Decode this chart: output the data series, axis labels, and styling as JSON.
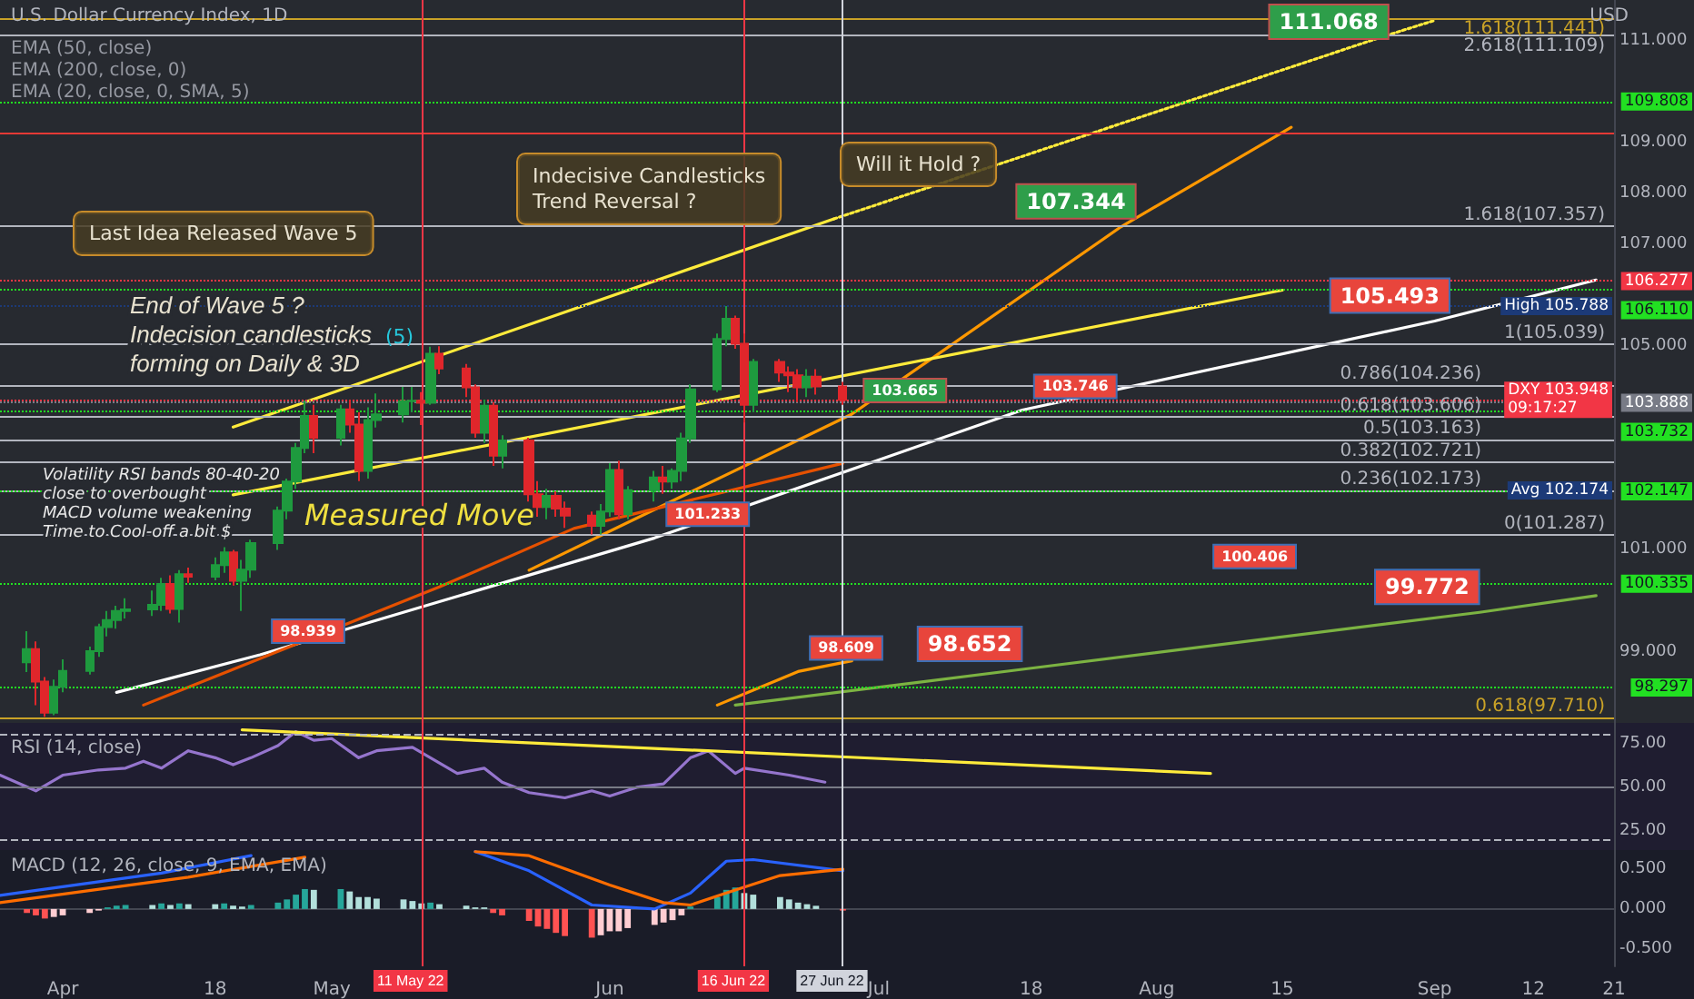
{
  "chart_data": [
    {
      "type": "candlestick",
      "title": "U.S. Dollar Currency Index, 1D",
      "ylabel": "USD",
      "tick_labels": "y",
      "x": [
        "--03-28",
        "--03-29",
        "--03-30",
        "--03-31",
        "--04-01",
        "--04-04",
        "--04-05",
        "--04-06",
        "--04-07",
        "--04-08",
        "--04-11",
        "--04-12",
        "--04-13",
        "--04-14",
        "--04-15",
        "--04-18",
        "--04-19",
        "--04-20",
        "--04-21",
        "--04-22",
        "--04-25",
        "--04-26",
        "--04-27",
        "--04-28",
        "--04-29",
        "--05-02",
        "--05-03",
        "--05-04",
        "--05-05",
        "--05-06",
        "--05-09",
        "--05-10",
        "--05-11",
        "--05-12",
        "--05-13",
        "--05-16",
        "--05-17",
        "--05-18",
        "--05-19",
        "--05-20",
        "--05-23",
        "--05-24",
        "--05-25",
        "--05-26",
        "--05-27",
        "--05-30",
        "--05-31",
        "--06-01",
        "--06-02",
        "--06-03",
        "--06-06",
        "--06-07",
        "--06-08",
        "--06-09",
        "--06-10",
        "--06-13",
        "--06-14",
        "--06-15",
        "--06-16",
        "--06-17",
        "--06-20",
        "--06-21",
        "--06-22",
        "--06-23",
        "--06-24",
        "--06-27"
      ],
      "ohlc": [
        [
          98.79,
          99.4,
          98.6,
          99.05
        ],
        [
          99.05,
          99.2,
          97.95,
          98.41
        ],
        [
          98.41,
          98.5,
          97.72,
          97.8
        ],
        [
          97.8,
          98.45,
          97.75,
          98.31
        ],
        [
          98.31,
          98.85,
          98.2,
          98.62
        ],
        [
          98.62,
          99.1,
          98.55,
          99.01
        ],
        [
          99.01,
          99.55,
          98.9,
          99.48
        ],
        [
          99.48,
          99.8,
          99.3,
          99.62
        ],
        [
          99.62,
          99.9,
          99.45,
          99.8
        ],
        [
          99.8,
          100.05,
          99.65,
          99.83
        ],
        [
          99.83,
          100.2,
          99.7,
          99.92
        ],
        [
          99.92,
          100.45,
          99.8,
          100.33
        ],
        [
          100.33,
          100.5,
          99.75,
          99.84
        ],
        [
          99.84,
          100.6,
          99.57,
          100.52
        ],
        [
          100.52,
          100.65,
          100.35,
          100.47
        ],
        [
          100.47,
          100.85,
          100.4,
          100.7
        ],
        [
          100.7,
          101.05,
          100.55,
          100.95
        ],
        [
          100.95,
          101.0,
          100.3,
          100.39
        ],
        [
          100.39,
          100.8,
          99.8,
          100.61
        ],
        [
          100.61,
          101.2,
          100.45,
          101.13
        ],
        [
          101.13,
          101.85,
          101.0,
          101.77
        ],
        [
          101.77,
          102.4,
          101.6,
          102.34
        ],
        [
          102.34,
          103.1,
          102.2,
          103.0
        ],
        [
          103.0,
          103.93,
          102.9,
          103.63
        ],
        [
          103.63,
          103.85,
          102.9,
          103.2
        ],
        [
          103.2,
          103.85,
          103.05,
          103.76
        ],
        [
          103.76,
          103.95,
          103.3,
          103.46
        ],
        [
          103.46,
          103.7,
          102.35,
          102.55
        ],
        [
          102.55,
          103.8,
          102.4,
          103.55
        ],
        [
          103.55,
          104.07,
          103.4,
          103.66
        ],
        [
          103.66,
          104.2,
          103.5,
          103.92
        ],
        [
          103.92,
          104.2,
          103.7,
          103.93
        ],
        [
          103.93,
          104.1,
          103.45,
          103.89
        ],
        [
          103.89,
          104.99,
          103.85,
          104.85
        ],
        [
          104.85,
          105.0,
          104.45,
          104.56
        ],
        [
          104.56,
          104.65,
          104.0,
          104.19
        ],
        [
          104.19,
          104.25,
          103.2,
          103.3
        ],
        [
          103.3,
          103.95,
          103.1,
          103.83
        ],
        [
          103.83,
          103.9,
          102.65,
          102.85
        ],
        [
          102.85,
          103.25,
          102.6,
          103.15
        ],
        [
          103.15,
          103.2,
          101.95,
          102.09
        ],
        [
          102.09,
          102.35,
          101.65,
          101.84
        ],
        [
          101.84,
          102.2,
          101.6,
          102.06
        ],
        [
          102.06,
          102.15,
          101.65,
          101.81
        ],
        [
          101.81,
          101.95,
          101.43,
          101.67
        ],
        [
          101.67,
          101.75,
          101.3,
          101.47
        ],
        [
          101.47,
          101.9,
          101.3,
          101.75
        ],
        [
          101.75,
          102.7,
          101.65,
          102.57
        ],
        [
          102.57,
          102.75,
          101.6,
          101.7
        ],
        [
          101.7,
          102.25,
          101.6,
          102.17
        ],
        [
          102.17,
          102.55,
          101.95,
          102.42
        ],
        [
          102.42,
          102.65,
          102.1,
          102.34
        ],
        [
          102.34,
          102.6,
          102.2,
          102.55
        ],
        [
          102.55,
          103.3,
          102.35,
          103.19
        ],
        [
          103.19,
          104.25,
          103.1,
          104.15
        ],
        [
          104.15,
          105.25,
          104.1,
          105.14
        ],
        [
          105.14,
          105.79,
          105.0,
          105.54
        ],
        [
          105.54,
          105.6,
          104.95,
          105.05
        ],
        [
          105.05,
          105.25,
          103.5,
          103.85
        ],
        [
          103.85,
          104.75,
          103.7,
          104.69
        ],
        [
          104.69,
          104.75,
          104.3,
          104.48
        ],
        [
          104.48,
          104.6,
          104.1,
          104.43
        ],
        [
          104.43,
          104.55,
          103.9,
          104.19
        ],
        [
          104.19,
          104.55,
          104.0,
          104.4
        ],
        [
          104.4,
          104.55,
          104.05,
          104.21
        ],
        [
          104.21,
          104.3,
          103.85,
          103.948
        ]
      ],
      "series": [
        {
          "type": "line",
          "color": "#ffffff",
          "x": [
            "--04-07",
            "--04-23",
            "--06-06",
            "--07-17",
            "--09-01",
            "--09-19"
          ],
          "values": [
            98.2,
            98.939,
            101.233,
            103.746,
            105.493,
            106.3
          ]
        },
        {
          "type": "line",
          "color": "#ff9800",
          "x": [
            "--05-23",
            "--06-28",
            "--07-28",
            "--08-16"
          ],
          "values": [
            100.6,
            103.665,
            107.344,
            109.3
          ]
        },
        {
          "type": "line",
          "color": "#ff9800",
          "x": [
            "--06-13",
            "--06-22",
            "--06-28"
          ],
          "values": [
            97.95,
            98.609,
            98.82
          ]
        },
        {
          "type": "line",
          "color": "#ffeb3b",
          "line_style": "dotted",
          "x": [
            "--06-26",
            "--08-26",
            "--09-01"
          ],
          "values": [
            107.5,
            111.068,
            111.4
          ]
        },
        {
          "type": "line",
          "color": "#ffeb3b",
          "x": [
            "--04-20",
            "--06-26"
          ],
          "values": [
            103.41,
            107.5
          ]
        },
        {
          "type": "line",
          "color": "#ffeb3b",
          "x": [
            "--04-20",
            "--08-15"
          ],
          "values": [
            102.08,
            106.1
          ]
        },
        {
          "type": "line",
          "color": "#7cb342",
          "x": [
            "--06-15",
            "--07-17",
            "--09-06",
            "--09-19"
          ],
          "values": [
            97.95,
            98.652,
            99.772,
            100.1
          ]
        },
        {
          "type": "line",
          "color": "#e65100",
          "x": [
            "--04-10",
            "--05-13",
            "--05-28",
            "--06-27"
          ],
          "values": [
            97.95,
            100.27,
            101.42,
            102.7
          ]
        }
      ],
      "xlim": [
        "--03-25",
        "--09-21"
      ],
      "ylim": [
        97.6,
        111.8
      ],
      "yticks": [
        {
          "value": 99,
          "label": "99.000"
        },
        {
          "value": 101,
          "label": "101.000"
        },
        {
          "value": 105,
          "label": "105.000"
        },
        {
          "value": 107,
          "label": "107.000"
        },
        {
          "value": 108,
          "label": "108.000"
        },
        {
          "value": 109,
          "label": "109.000"
        },
        {
          "value": 111,
          "label": "111.000"
        }
      ],
      "ref_lines": [
        {
          "axis": "y",
          "value": 111.441,
          "label": "1.618(111.441)",
          "color": "#c9a227"
        },
        {
          "axis": "y",
          "value": 111.109,
          "label": "2.618(111.109)",
          "color": "#b2b5be"
        },
        {
          "axis": "y",
          "value": 107.357,
          "label": "1.618(107.357)",
          "color": "#b2b5be"
        },
        {
          "axis": "y",
          "value": 105.039,
          "label": "1(105.039)",
          "color": "#b2b5be"
        },
        {
          "axis": "y",
          "value": 104.236,
          "label": "0.786(104.236)",
          "color": "#b2b5be"
        },
        {
          "axis": "y",
          "value": 103.606,
          "label": "0.618(103.606)",
          "color": "#b2b5be"
        },
        {
          "axis": "y",
          "value": 103.163,
          "label": "0.5(103.163)",
          "color": "#b2b5be"
        },
        {
          "axis": "y",
          "value": 102.721,
          "label": "0.382(102.721)",
          "color": "#b2b5be"
        },
        {
          "axis": "y",
          "value": 102.173,
          "label": "0.236(102.173)",
          "color": "#b2b5be"
        },
        {
          "axis": "y",
          "value": 101.287,
          "label": "0(101.287)",
          "color": "#b2b5be"
        },
        {
          "axis": "y",
          "value": 97.71,
          "label": "0.618(97.710)",
          "color": "#c9a227"
        },
        {
          "axis": "y",
          "value": 109.2,
          "color": "#e53935"
        },
        {
          "axis": "y",
          "value": 109.808,
          "label": "109.808",
          "color": "#22e022",
          "line_style": "dotted"
        },
        {
          "axis": "y",
          "value": 106.11,
          "label": "106.110",
          "color": "#22e022",
          "line_style": "dotted"
        },
        {
          "axis": "y",
          "value": 103.732,
          "label": "103.732",
          "color": "#22e022",
          "line_style": "dotted"
        },
        {
          "axis": "y",
          "value": 102.147,
          "label": "102.147",
          "color": "#22e022",
          "line_style": "dotted"
        },
        {
          "axis": "y",
          "value": 100.335,
          "label": "100.335",
          "color": "#22e022",
          "line_style": "dotted"
        },
        {
          "axis": "y",
          "value": 98.297,
          "label": "98.297",
          "color": "#22e022",
          "line_style": "dotted"
        },
        {
          "axis": "y",
          "value": 106.277,
          "label": "106.277",
          "color": "#f23645",
          "line_style": "dotted"
        },
        {
          "axis": "y",
          "value": 105.788,
          "label": "High 105.788",
          "color": "#1c3a78",
          "line_style": "dotted"
        },
        {
          "axis": "y",
          "value": 103.948,
          "label": "DXY 103.948\n09:17:27",
          "color": "#f23645",
          "line_style": "dotted"
        },
        {
          "axis": "y",
          "value": 103.888,
          "label": "103.888",
          "color": "#787b86",
          "line_style": "dotted"
        },
        {
          "axis": "x",
          "value": "--05-11",
          "color": "#f23645"
        },
        {
          "axis": "x",
          "value": "--06-16",
          "color": "#f23645"
        },
        {
          "axis": "x",
          "value": "--06-27",
          "color": "#d1d4dc"
        }
      ],
      "annotations": [
        "EMA (50, close)",
        "EMA (200, close, 0)",
        "EMA (20, close, 0, SMA, 5)",
        "Last Idea Released Wave 5",
        "Indecisive Candlesticks\nTrend Reversal ?",
        "Will it Hold ?",
        "End of Wave 5 ?\nIndecision candlesticks\nforming on Daily & 3D",
        "(5)",
        "Volatility RSI bands 80-40-20\nclose to overbought\nMACD volume weakening\nTime to Cool-off a bit $",
        "Measured Move",
        "Avg 102.174",
        {
          "text": "111.068",
          "x": "--08-26",
          "y": 111.068
        },
        {
          "text": "107.344",
          "x": "--07-28",
          "y": 107.344
        },
        {
          "text": "105.493",
          "x": "--09-01",
          "y": 105.493
        },
        {
          "text": "103.746",
          "x": "--07-17",
          "y": 103.746
        },
        {
          "text": "100.406",
          "x": "--08-06",
          "y": 100.406
        },
        {
          "text": "99.772",
          "x": "--09-06",
          "y": 99.772
        },
        {
          "text": "98.652",
          "x": "--07-17",
          "y": 98.652
        },
        {
          "text": "98.939",
          "x": "--04-23",
          "y": 98.939
        },
        {
          "text": "101.233",
          "x": "--06-06",
          "y": 101.233
        },
        {
          "text": "98.609",
          "x": "--06-22",
          "y": 98.609
        },
        {
          "text": "103.665",
          "x": "--06-28",
          "y": 103.665
        }
      ]
    },
    {
      "type": "line",
      "title": "RSI (14, close)",
      "tick_labels": "y",
      "series": [
        {
          "color": "#9575cd",
          "x": [
            "--03-25",
            "--03-29",
            "--04-01",
            "--04-05",
            "--04-08",
            "--04-10",
            "--04-12",
            "--04-15",
            "--04-18",
            "--04-20",
            "--04-22",
            "--04-25",
            "--04-27",
            "--04-29",
            "--05-01",
            "--05-04",
            "--05-06",
            "--05-10",
            "--05-12",
            "--05-15",
            "--05-18",
            "--05-20",
            "--05-23",
            "--05-27",
            "--05-30",
            "--06-01",
            "--06-04",
            "--06-07",
            "--06-10",
            "--06-12",
            "--06-15",
            "--06-16",
            "--06-21",
            "--06-25"
          ],
          "values": [
            57,
            48,
            57,
            60,
            61,
            65,
            61,
            71,
            67,
            63,
            67,
            74,
            82,
            77,
            78,
            67,
            71,
            73,
            67,
            58,
            61,
            53,
            47,
            44,
            48,
            45,
            50,
            52,
            67,
            71,
            58,
            61,
            57,
            53
          ]
        },
        {
          "color": "#ffeb3b",
          "x": [
            "--04-21",
            "--08-07"
          ],
          "values": [
            83,
            58
          ]
        }
      ],
      "xlim": [
        "--03-25",
        "--09-21"
      ],
      "ylim": [
        14,
        87
      ],
      "yticks": [
        {
          "value": 25,
          "label": "25.00"
        },
        {
          "value": 50,
          "label": "50.00"
        },
        {
          "value": 75,
          "label": "75.00"
        }
      ],
      "ref_lines": [
        {
          "axis": "y",
          "value": 80,
          "color": "#b2b5be",
          "line_style": "dashed"
        },
        {
          "axis": "y",
          "value": 50,
          "color": "#787b86"
        },
        {
          "axis": "y",
          "value": 20,
          "color": "#b2b5be",
          "line_style": "dashed"
        },
        {
          "axis": "x",
          "value": "--05-11",
          "color": "#f23645"
        },
        {
          "axis": "x",
          "value": "--06-16",
          "color": "#f23645"
        },
        {
          "axis": "x",
          "value": "--06-27",
          "color": "#d1d4dc"
        }
      ]
    },
    {
      "type": "bar",
      "title": "MACD (12, 26, close, 9, EMA, EMA)",
      "x": [
        "--03-28",
        "--03-29",
        "--03-30",
        "--03-31",
        "--04-01",
        "--04-04",
        "--04-05",
        "--04-06",
        "--04-07",
        "--04-08",
        "--04-11",
        "--04-12",
        "--04-13",
        "--04-14",
        "--04-15",
        "--04-18",
        "--04-19",
        "--04-20",
        "--04-21",
        "--04-22",
        "--04-25",
        "--04-26",
        "--04-27",
        "--04-28",
        "--04-29",
        "--05-02",
        "--05-03",
        "--05-04",
        "--05-05",
        "--05-06",
        "--05-09",
        "--05-10",
        "--05-11",
        "--05-12",
        "--05-13",
        "--05-16",
        "--05-17",
        "--05-18",
        "--05-19",
        "--05-20",
        "--05-23",
        "--05-24",
        "--05-25",
        "--05-26",
        "--05-27",
        "--05-30",
        "--05-31",
        "--06-01",
        "--06-02",
        "--06-03",
        "--06-06",
        "--06-07",
        "--06-08",
        "--06-09",
        "--06-10",
        "--06-13",
        "--06-14",
        "--06-15",
        "--06-16",
        "--06-17",
        "--06-20",
        "--06-21",
        "--06-22",
        "--06-23",
        "--06-24",
        "--06-27"
      ],
      "series": [
        {
          "values": [
            -0.05,
            -0.08,
            -0.12,
            -0.1,
            -0.08,
            -0.05,
            -0.02,
            0.02,
            0.04,
            0.05,
            0.05,
            0.07,
            0.05,
            0.07,
            0.06,
            0.06,
            0.07,
            0.04,
            0.03,
            0.05,
            0.08,
            0.12,
            0.18,
            0.25,
            0.24,
            0.25,
            0.22,
            0.15,
            0.15,
            0.13,
            0.12,
            0.1,
            0.07,
            0.08,
            0.06,
            0.04,
            0.02,
            0.02,
            -0.05,
            -0.08,
            -0.15,
            -0.22,
            -0.25,
            -0.3,
            -0.34,
            -0.36,
            -0.33,
            -0.28,
            -0.28,
            -0.24,
            -0.2,
            -0.17,
            -0.14,
            -0.08,
            0.03,
            0.15,
            0.24,
            0.27,
            0.2,
            0.18,
            0.15,
            0.12,
            0.08,
            0.06,
            0.04,
            -0.02
          ],
          "colors": [
            "#ff5252",
            "#ff5252",
            "#ff5252",
            "#ffcdd2",
            "#ffcdd2",
            "#ffcdd2",
            "#ffcdd2",
            "#26a69a",
            "#26a69a",
            "#26a69a",
            "#b2dfdb",
            "#26a69a",
            "#b2dfdb",
            "#26a69a",
            "#b2dfdb",
            "#b2dfdb",
            "#26a69a",
            "#b2dfdb",
            "#b2dfdb",
            "#26a69a",
            "#26a69a",
            "#26a69a",
            "#26a69a",
            "#26a69a",
            "#b2dfdb",
            "#26a69a",
            "#b2dfdb",
            "#b2dfdb",
            "#b2dfdb",
            "#b2dfdb",
            "#b2dfdb",
            "#b2dfdb",
            "#b2dfdb",
            "#26a69a",
            "#b2dfdb",
            "#b2dfdb",
            "#b2dfdb",
            "#b2dfdb",
            "#ff5252",
            "#ff5252",
            "#ff5252",
            "#ff5252",
            "#ff5252",
            "#ff5252",
            "#ff5252",
            "#ff5252",
            "#ffcdd2",
            "#ffcdd2",
            "#ffcdd2",
            "#ffcdd2",
            "#ffcdd2",
            "#ffcdd2",
            "#ffcdd2",
            "#ffcdd2",
            "#26a69a",
            "#26a69a",
            "#26a69a",
            "#26a69a",
            "#b2dfdb",
            "#b2dfdb",
            "#b2dfdb",
            "#b2dfdb",
            "#b2dfdb",
            "#b2dfdb",
            "#b2dfdb",
            "#ff5252"
          ]
        },
        {
          "type": "line",
          "color": "#2962ff",
          "x": [
            "--03-25",
            "--04-12",
            "--04-22",
            "--04-25",
            "--05-17",
            "--05-23",
            "--05-30",
            "--06-06",
            "--06-10",
            "--06-14",
            "--06-17",
            "--06-27"
          ],
          "values": [
            0.17,
            0.45,
            0.67,
            null,
            0.72,
            0.48,
            0.05,
            0,
            0.2,
            0.6,
            0.62,
            0.48
          ]
        },
        {
          "type": "line",
          "color": "#ff6d00",
          "x": [
            "--03-25",
            "--04-15",
            "--04-28",
            "--05-01",
            "--05-17",
            "--05-23",
            "--06-01",
            "--06-07",
            "--06-10",
            "--06-14",
            "--06-20",
            "--06-27"
          ],
          "values": [
            0.08,
            0.4,
            0.65,
            null,
            0.72,
            0.67,
            0.3,
            0.08,
            0.05,
            0.2,
            0.42,
            0.5
          ]
        }
      ],
      "xlim": [
        "--03-25",
        "--09-21"
      ],
      "xticks": [
        {
          "value": "--04-01",
          "label": "Apr"
        },
        {
          "value": "--04-18",
          "label": "18"
        },
        {
          "value": "--05-01",
          "label": "May"
        },
        {
          "value": "--06-01",
          "label": "Jun"
        },
        {
          "value": "--07-01",
          "label": "Jul"
        },
        {
          "value": "--07-18",
          "label": "18"
        },
        {
          "value": "--08-01",
          "label": "Aug"
        },
        {
          "value": "--08-15",
          "label": "15"
        },
        {
          "value": "--09-01",
          "label": "Sep"
        },
        {
          "value": "--09-12",
          "label": "12"
        },
        {
          "value": "--09-21",
          "label": "21"
        }
      ],
      "ylim": [
        -0.72,
        0.74
      ],
      "yticks": [
        {
          "value": -0.5,
          "label": "-0.500"
        },
        {
          "value": 0,
          "label": "0.000"
        },
        {
          "value": 0.5,
          "label": "0.500"
        }
      ],
      "ref_lines": [
        {
          "axis": "x",
          "value": "--05-11",
          "label": "11 May 22",
          "color": "#f23645"
        },
        {
          "axis": "x",
          "value": "--06-16",
          "label": "16 Jun 22",
          "color": "#f23645"
        },
        {
          "axis": "x",
          "value": "--06-27",
          "label": "27 Jun 22",
          "color": "#d1d4dc"
        }
      ]
    }
  ]
}
